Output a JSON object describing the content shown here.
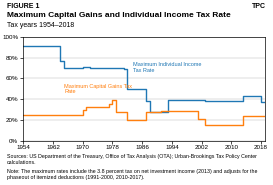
{
  "chart_data": {
    "type": "step",
    "figure_label": "FIGURE 1",
    "title": "Maximum Capital Gains and Individual Income Tax Rate",
    "subtitle": "Tax years 1954–2018",
    "source": [
      "Sources: US Department of the Treasury, Office of Tax Analysis (OTA); Urban-Brookings Tax Policy Center calculations.",
      "Note: The maximum rates include the 3.8 percent tax on net investment income (2013) and adjusts for the phaseout of itemized deductions (1991-2000, 2010-2017)."
    ],
    "annotations": [
      "TPC"
    ],
    "xlim": [
      1954,
      2019
    ],
    "xticks": [
      1954,
      1962,
      1970,
      1978,
      1986,
      1994,
      2002,
      2010,
      2018
    ],
    "ylim": [
      0,
      1.0
    ],
    "yticks": [
      {
        "value": 0,
        "label": "0%"
      },
      {
        "value": 0.2,
        "label": "20%"
      },
      {
        "value": 0.4,
        "label": "40%"
      },
      {
        "value": 0.6,
        "label": "60%"
      },
      {
        "value": 0.8,
        "label": "80%"
      },
      {
        "value": 1.0,
        "label": "100%"
      }
    ],
    "grid": true,
    "series": [
      {
        "name": "Maximum Individual Income\nTax Rate",
        "x": [
          1954,
          1963,
          1964,
          1965,
          1969,
          1970,
          1972,
          1981,
          1982,
          1986,
          1987,
          1988,
          1992,
          1993,
          2002,
          2003,
          2012,
          2013,
          2017,
          2018,
          2019
        ],
        "values": [
          0.91,
          0.91,
          0.77,
          0.7,
          0.7,
          0.715,
          0.7,
          0.695,
          0.5,
          0.5,
          0.386,
          0.28,
          0.28,
          0.396,
          0.396,
          0.386,
          0.386,
          0.433,
          0.433,
          0.37,
          0.37
        ]
      },
      {
        "name": "Maximum Capital Gains Tax\nRate",
        "x": [
          1954,
          1969,
          1970,
          1971,
          1976,
          1977,
          1978,
          1979,
          1981,
          1982,
          1986,
          1987,
          1990,
          1991,
          2000,
          2001,
          2002,
          2003,
          2012,
          2013,
          2018,
          2019
        ],
        "values": [
          0.25,
          0.25,
          0.295,
          0.325,
          0.325,
          0.355,
          0.393,
          0.28,
          0.28,
          0.2,
          0.2,
          0.28,
          0.28,
          0.2824,
          0.2824,
          0.2109,
          0.2109,
          0.15,
          0.15,
          0.238,
          0.238,
          0.238
        ]
      }
    ]
  }
}
